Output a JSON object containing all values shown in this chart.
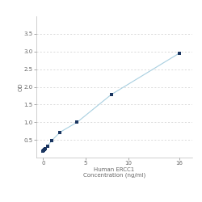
{
  "x": [
    0,
    0.0625,
    0.125,
    0.25,
    0.5,
    1,
    2,
    4,
    8,
    16
  ],
  "y": [
    0.18,
    0.2,
    0.22,
    0.26,
    0.32,
    0.48,
    0.72,
    1.0,
    1.78,
    2.95
  ],
  "line_color": "#a8cfe0",
  "marker_color": "#1a3560",
  "marker_size": 3.5,
  "marker_style": "s",
  "xlabel_line1": "Human ERCC1",
  "xlabel_line2": "Concentration (ng/ml)",
  "ylabel": "OD",
  "xlim": [
    -0.8,
    17.5
  ],
  "ylim": [
    0.0,
    4.0
  ],
  "xticks": [
    0,
    5,
    10,
    16
  ],
  "xticklabels": [
    "0",
    "5",
    "10",
    "16"
  ],
  "yticks": [
    0.5,
    1.0,
    1.5,
    2.0,
    2.5,
    3.0,
    3.5
  ],
  "grid_color": "#cccccc",
  "bg_color": "#ffffff",
  "tick_label_fontsize": 5,
  "axis_label_fontsize": 5,
  "linewidth": 0.8
}
